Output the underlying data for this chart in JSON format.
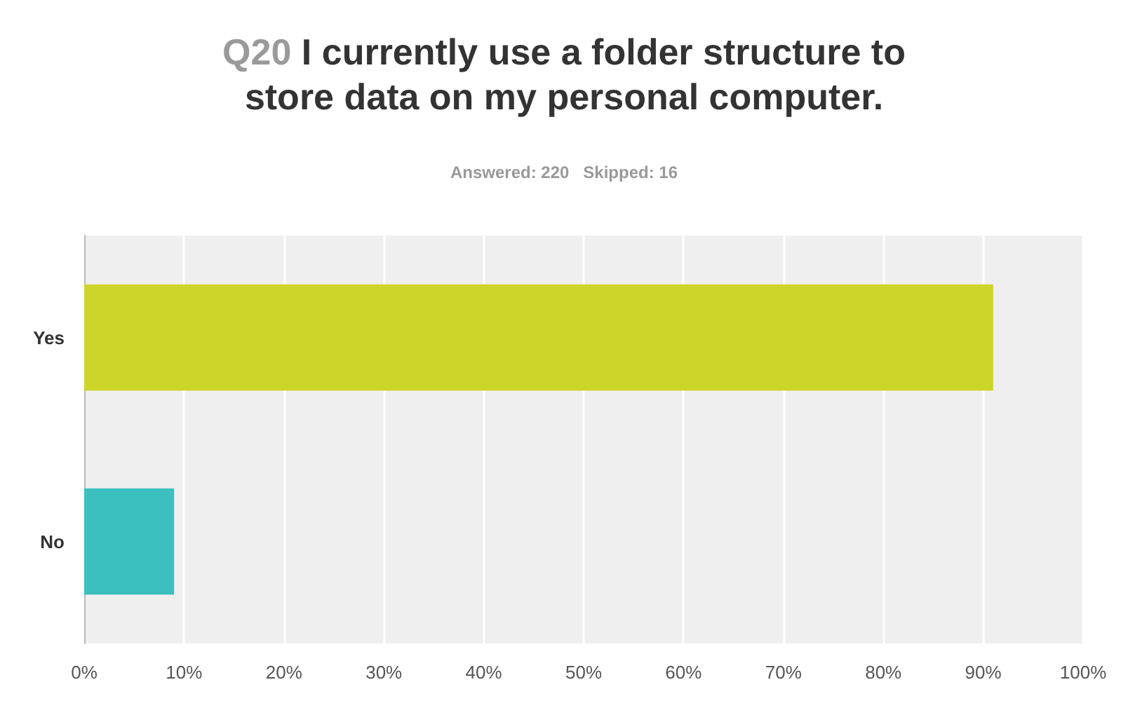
{
  "chart_data": {
    "type": "bar",
    "orientation": "horizontal",
    "title": "Q20 I currently use a folder structure to\nstore data on my personal computer.",
    "subtitle": "Answered: 220   Skipped: 16",
    "categories": [
      "Yes",
      "No"
    ],
    "values": [
      91,
      9
    ],
    "colors": [
      "#cdd42a",
      "#3bbfbf"
    ],
    "xlim": [
      0,
      100
    ],
    "xticks": [
      {
        "value": 0,
        "label": "0%"
      },
      {
        "value": 10,
        "label": "10%"
      },
      {
        "value": 20,
        "label": "20%"
      },
      {
        "value": 30,
        "label": "30%"
      },
      {
        "value": 40,
        "label": "40%"
      },
      {
        "value": 50,
        "label": "50%"
      },
      {
        "value": 60,
        "label": "60%"
      },
      {
        "value": 70,
        "label": "70%"
      },
      {
        "value": 80,
        "label": "80%"
      },
      {
        "value": 90,
        "label": "90%"
      },
      {
        "value": 100,
        "label": "100%"
      }
    ],
    "grid": "x"
  }
}
